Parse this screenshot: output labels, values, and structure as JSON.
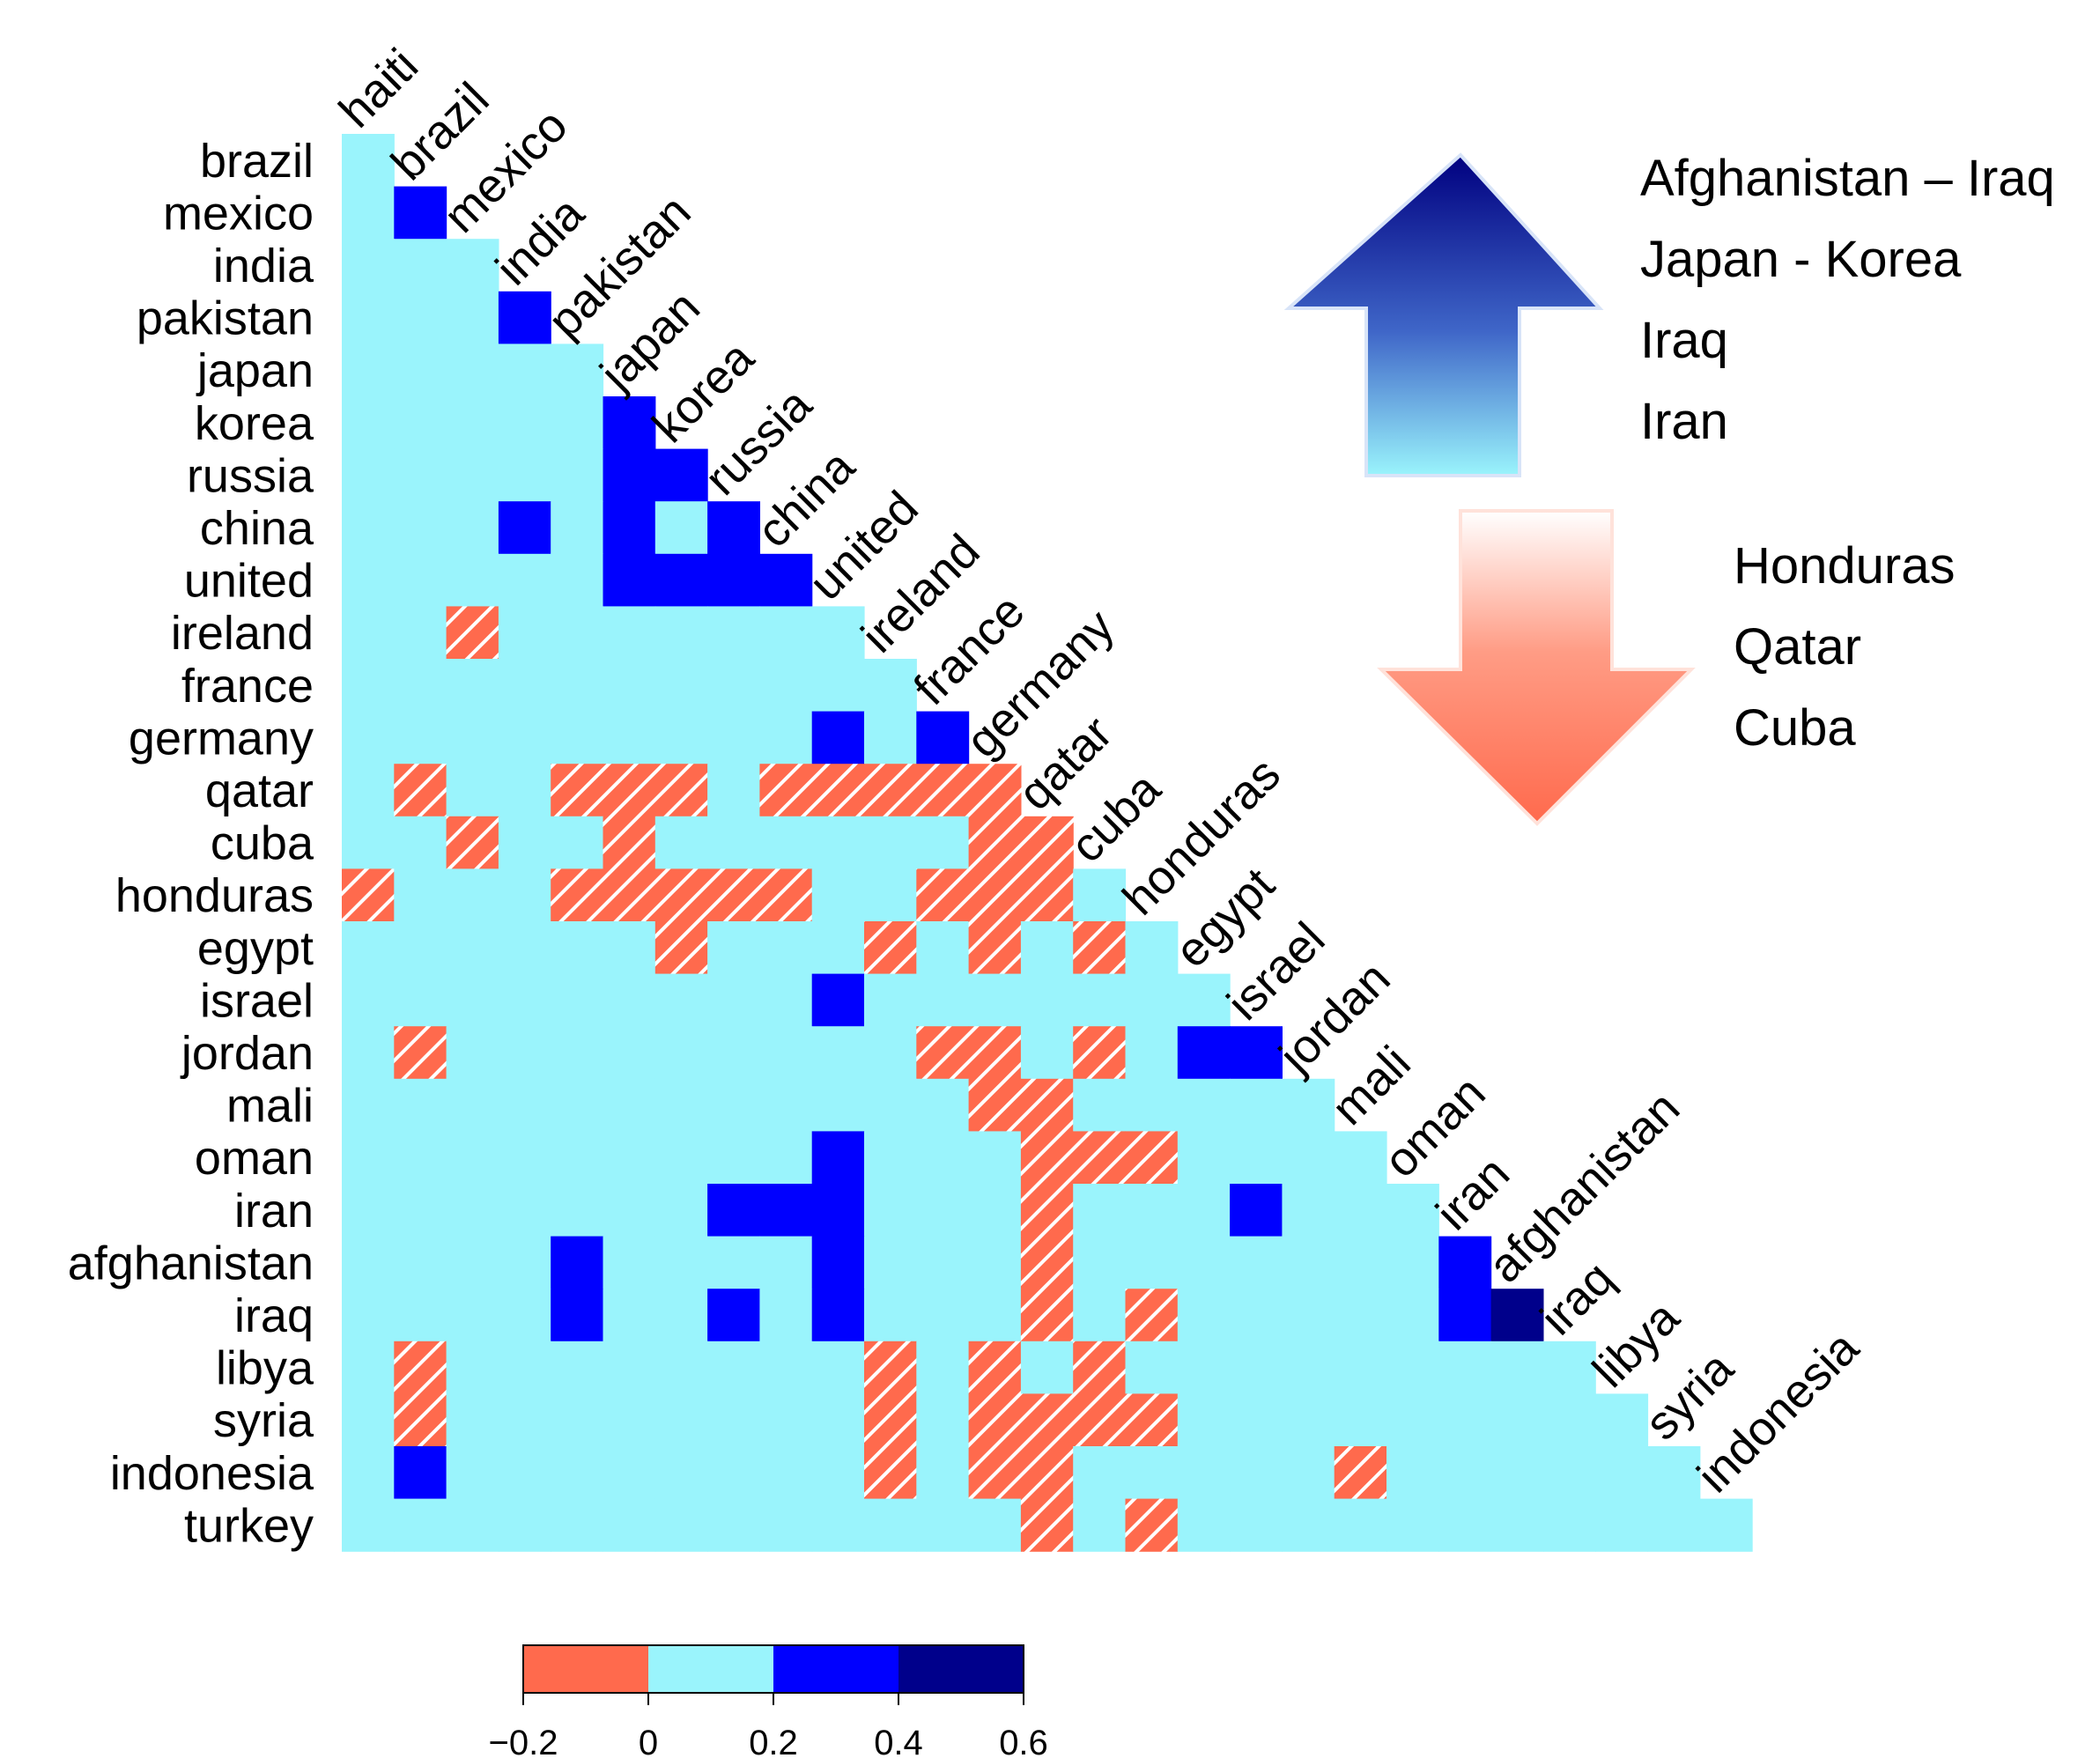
{
  "chart_data": {
    "type": "heatmap",
    "title": "",
    "xlabel": "",
    "ylabel": "",
    "layout": "lower-triangle",
    "row_labels": [
      "brazil",
      "mexico",
      "india",
      "pakistan",
      "japan",
      "korea",
      "russia",
      "china",
      "united",
      "ireland",
      "france",
      "germany",
      "qatar",
      "cuba",
      "honduras",
      "egypt",
      "israel",
      "jordan",
      "mali",
      "oman",
      "iran",
      "afghanistan",
      "iraq",
      "libya",
      "syria",
      "indonesia",
      "turkey"
    ],
    "col_labels": [
      "haiti",
      "brazil",
      "mexico",
      "india",
      "pakistan",
      "japan",
      "korea",
      "russia",
      "china",
      "united",
      "ireland",
      "france",
      "germany",
      "qatar",
      "cuba",
      "honduras",
      "egypt",
      "israel",
      "jordan",
      "mali",
      "oman",
      "iran",
      "afghanistan",
      "iraq",
      "libya",
      "syria",
      "indonesia"
    ],
    "value_note": "cells not listed in values have value 0.1 (0 to 0.2 bin)",
    "default_value": 0.1,
    "values": [
      [
        1,
        1,
        0.3
      ],
      [
        3,
        3,
        0.3
      ],
      [
        5,
        5,
        0.3
      ],
      [
        6,
        5,
        0.3
      ],
      [
        6,
        6,
        0.3
      ],
      [
        7,
        3,
        0.3
      ],
      [
        7,
        5,
        0.3
      ],
      [
        7,
        7,
        0.3
      ],
      [
        8,
        5,
        0.3
      ],
      [
        8,
        6,
        0.3
      ],
      [
        8,
        7,
        0.3
      ],
      [
        8,
        8,
        0.3
      ],
      [
        9,
        2,
        -0.1
      ],
      [
        11,
        9,
        0.3
      ],
      [
        11,
        11,
        0.3
      ],
      [
        12,
        1,
        -0.1
      ],
      [
        12,
        4,
        -0.1
      ],
      [
        12,
        5,
        -0.1
      ],
      [
        12,
        6,
        -0.1
      ],
      [
        12,
        8,
        -0.1
      ],
      [
        12,
        9,
        -0.1
      ],
      [
        12,
        10,
        -0.1
      ],
      [
        12,
        11,
        -0.1
      ],
      [
        12,
        12,
        -0.1
      ],
      [
        13,
        2,
        -0.1
      ],
      [
        13,
        5,
        -0.1
      ],
      [
        13,
        12,
        -0.1
      ],
      [
        13,
        13,
        -0.1
      ],
      [
        14,
        0,
        -0.1
      ],
      [
        14,
        4,
        -0.1
      ],
      [
        14,
        5,
        -0.1
      ],
      [
        14,
        6,
        -0.1
      ],
      [
        14,
        7,
        -0.1
      ],
      [
        14,
        8,
        -0.1
      ],
      [
        14,
        11,
        -0.1
      ],
      [
        14,
        12,
        -0.1
      ],
      [
        14,
        13,
        -0.1
      ],
      [
        15,
        6,
        -0.1
      ],
      [
        15,
        10,
        -0.1
      ],
      [
        15,
        12,
        -0.1
      ],
      [
        15,
        14,
        -0.1
      ],
      [
        16,
        9,
        0.3
      ],
      [
        17,
        1,
        -0.1
      ],
      [
        17,
        11,
        -0.1
      ],
      [
        17,
        12,
        -0.1
      ],
      [
        17,
        14,
        -0.1
      ],
      [
        17,
        16,
        0.3
      ],
      [
        17,
        17,
        0.3
      ],
      [
        18,
        12,
        -0.1
      ],
      [
        18,
        13,
        -0.1
      ],
      [
        19,
        9,
        0.3
      ],
      [
        19,
        13,
        -0.1
      ],
      [
        19,
        14,
        -0.1
      ],
      [
        19,
        15,
        -0.1
      ],
      [
        20,
        7,
        0.3
      ],
      [
        20,
        8,
        0.3
      ],
      [
        20,
        9,
        0.3
      ],
      [
        20,
        13,
        -0.1
      ],
      [
        20,
        17,
        0.3
      ],
      [
        21,
        4,
        0.3
      ],
      [
        21,
        9,
        0.3
      ],
      [
        21,
        13,
        -0.1
      ],
      [
        21,
        21,
        0.3
      ],
      [
        22,
        4,
        0.3
      ],
      [
        22,
        7,
        0.3
      ],
      [
        22,
        9,
        0.3
      ],
      [
        22,
        13,
        -0.1
      ],
      [
        22,
        15,
        -0.1
      ],
      [
        22,
        21,
        0.3
      ],
      [
        22,
        22,
        0.5
      ],
      [
        23,
        1,
        -0.1
      ],
      [
        23,
        10,
        -0.1
      ],
      [
        23,
        12,
        -0.1
      ],
      [
        23,
        14,
        -0.1
      ],
      [
        24,
        1,
        -0.1
      ],
      [
        24,
        10,
        -0.1
      ],
      [
        24,
        12,
        -0.1
      ],
      [
        24,
        13,
        -0.1
      ],
      [
        24,
        14,
        -0.1
      ],
      [
        24,
        15,
        -0.1
      ],
      [
        25,
        1,
        0.3
      ],
      [
        25,
        10,
        -0.1
      ],
      [
        25,
        12,
        -0.1
      ],
      [
        25,
        13,
        -0.1
      ],
      [
        25,
        19,
        -0.1
      ],
      [
        26,
        13,
        -0.1
      ],
      [
        26,
        15,
        -0.1
      ]
    ],
    "colorbar": {
      "breaks": [
        -0.2,
        0,
        0.2,
        0.4,
        0.6
      ],
      "tick_labels": [
        "−0.2",
        "0",
        "0.2",
        "0.4",
        "0.6"
      ],
      "colors": [
        "#FF6A4D",
        "#9AF4FC",
        "#0000FF",
        "#00008B"
      ]
    },
    "annotations": {
      "up_arrow_labels": [
        "Afghanistan – Iraq",
        "Japan - Korea",
        "Iraq",
        "Iran"
      ],
      "down_arrow_labels": [
        "Honduras",
        "Qatar",
        "Cuba"
      ]
    },
    "colors": {
      "negative": "#FF6A4D",
      "neutral": "#9AF4FC",
      "positive": "#0000FF",
      "strong_positive": "#00008B",
      "up_arrow_top": "#000080",
      "up_arrow_bottom": "#9AF4FC",
      "down_arrow_top": "#FFFFFF",
      "down_arrow_bottom": "#FF6A4D"
    }
  }
}
